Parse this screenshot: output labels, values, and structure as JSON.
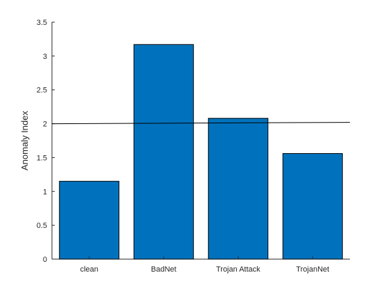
{
  "chart_data": {
    "type": "bar",
    "categories": [
      "clean",
      "BadNet",
      "Trojan Attack",
      "TrojanNet"
    ],
    "values": [
      1.15,
      3.17,
      2.08,
      1.56
    ],
    "title": "",
    "xlabel": "",
    "ylabel": "Anomaly Index",
    "ylim": [
      0,
      3.5
    ],
    "yticks": [
      0,
      0.5,
      1,
      1.5,
      2,
      2.5,
      3,
      3.5
    ],
    "ytick_labels": [
      "0",
      "0.5",
      "1",
      "1.5",
      "2",
      "2.5",
      "3",
      "3.5"
    ],
    "xlim": [
      0.5,
      4.5
    ],
    "threshold_line": {
      "x": [
        0.5,
        4.5
      ],
      "y": [
        2.0,
        2.02
      ]
    },
    "grid": false,
    "legend": "none",
    "bar_color": "#0072BD",
    "bar_edge_color": "#000000",
    "axis_color": "#262626"
  }
}
